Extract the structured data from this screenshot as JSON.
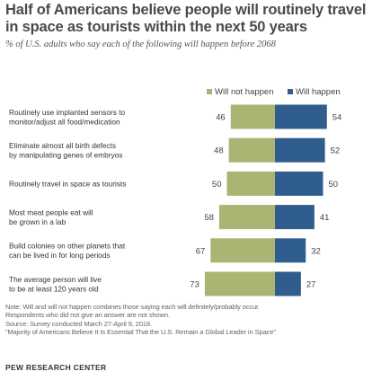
{
  "title": "Half of Americans believe people will routinely travel in space as tourists within the next 50 years",
  "subtitle": "% of U.S. adults who say each of the following will happen before 2068",
  "colors": {
    "will_not": "#a9b673",
    "will": "#2f5e8e"
  },
  "legend": {
    "will_not": "Will not happen",
    "will": "Will happen"
  },
  "chart_data": {
    "type": "bar",
    "stacked": "diverging",
    "categories": [
      [
        "Routinely use implanted sensors to",
        "monitor/adjust all food/medication"
      ],
      [
        "Eliminate almost all birth defects",
        "by manipulating genes of embryos"
      ],
      [
        "Routinely travel in space as tourists"
      ],
      [
        "Most meat people eat will",
        "be grown in a lab"
      ],
      [
        "Build colonies on other planets that",
        "can be lived in for long periods"
      ],
      [
        "The average person will live",
        "to be at least 120 years old"
      ]
    ],
    "series": [
      {
        "name": "Will not happen",
        "values": [
          46,
          48,
          50,
          58,
          67,
          73
        ]
      },
      {
        "name": "Will happen",
        "values": [
          54,
          52,
          50,
          41,
          32,
          27
        ]
      }
    ],
    "legend_position": "top"
  },
  "notes": [
    "Note: Will and will not happen combines those saying each will definitely/probably occur.",
    "Respondents who did not give an answer are not shown.",
    "Source: Survey conducted March 27-April 9, 2018.",
    "“Majority of Americans Believe It Is Essential That the U.S. Remain a Global Leader in Space”"
  ],
  "source_brand": "PEW RESEARCH CENTER"
}
